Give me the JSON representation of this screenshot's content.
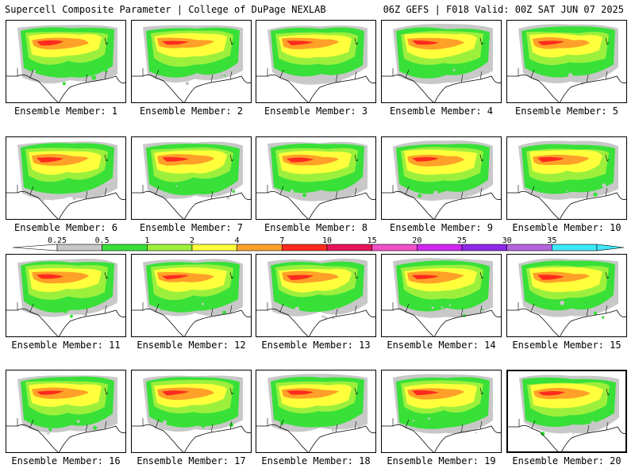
{
  "header": {
    "title": "Supercell Composite Parameter | College of DuPage NEXLAB",
    "run_info": "06Z GEFS | F018 Valid: 00Z SAT JUN 07 2025"
  },
  "legend": {
    "ticks": [
      "0.25",
      "0.5",
      "1",
      "2",
      "4",
      "7",
      "10",
      "15",
      "20",
      "25",
      "30",
      "35"
    ],
    "colors": [
      "#ffffff",
      "#c8c8c8",
      "#38e038",
      "#9cf03c",
      "#ffff3c",
      "#ffa028",
      "#ff2a1e",
      "#e8145a",
      "#f050c8",
      "#d028f0",
      "#8c28e6",
      "#b464dc",
      "#40e8f8"
    ]
  },
  "panels": [
    {
      "label": "Ensemble Member: 1"
    },
    {
      "label": "Ensemble Member: 2"
    },
    {
      "label": "Ensemble Member: 3"
    },
    {
      "label": "Ensemble Member: 4"
    },
    {
      "label": "Ensemble Member: 5"
    },
    {
      "label": "Ensemble Member: 6"
    },
    {
      "label": "Ensemble Member: 7"
    },
    {
      "label": "Ensemble Member: 8"
    },
    {
      "label": "Ensemble Member: 9"
    },
    {
      "label": "Ensemble Member: 10"
    },
    {
      "label": "Ensemble Member: 11"
    },
    {
      "label": "Ensemble Member: 12"
    },
    {
      "label": "Ensemble Member: 13"
    },
    {
      "label": "Ensemble Member: 14"
    },
    {
      "label": "Ensemble Member: 15"
    },
    {
      "label": "Ensemble Member: 16"
    },
    {
      "label": "Ensemble Member: 17"
    },
    {
      "label": "Ensemble Member: 18"
    },
    {
      "label": "Ensemble Member: 19"
    },
    {
      "label": "Ensemble Member: 20",
      "selected": true
    }
  ]
}
